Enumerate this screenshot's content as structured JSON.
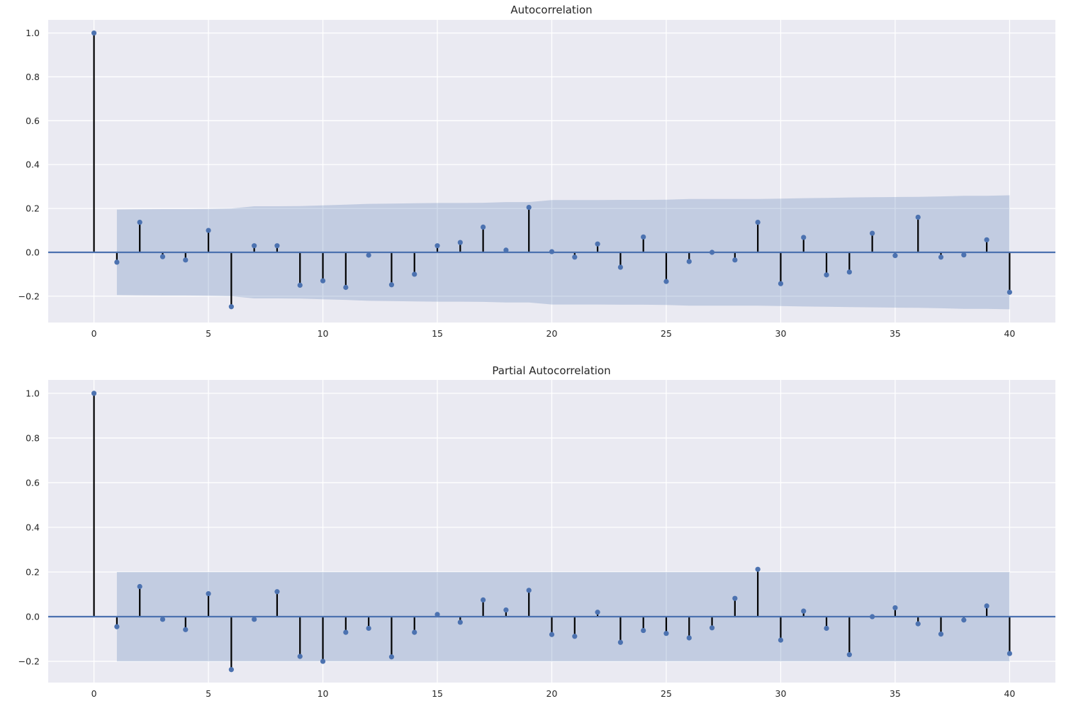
{
  "chart_data": [
    {
      "type": "stem",
      "title": "Autocorrelation",
      "xlabel": "",
      "ylabel": "",
      "xlim": [
        -2,
        42
      ],
      "ylim": [
        -0.32,
        1.06
      ],
      "xticks": [
        0,
        5,
        10,
        15,
        20,
        25,
        30,
        35,
        40
      ],
      "xtick_labels": [
        "0",
        "5",
        "10",
        "15",
        "20",
        "25",
        "30",
        "35",
        "40"
      ],
      "yticks": [
        -0.2,
        0.0,
        0.2,
        0.4,
        0.6,
        0.8,
        1.0
      ],
      "ytick_labels": [
        "−0.2",
        "0.0",
        "0.2",
        "0.4",
        "0.6",
        "0.8",
        "1.0"
      ],
      "grid": true,
      "lags": [
        0,
        1,
        2,
        3,
        4,
        5,
        6,
        7,
        8,
        9,
        10,
        11,
        12,
        13,
        14,
        15,
        16,
        17,
        18,
        19,
        20,
        21,
        22,
        23,
        24,
        25,
        26,
        27,
        28,
        29,
        30,
        31,
        32,
        33,
        34,
        35,
        36,
        37,
        38,
        39,
        40
      ],
      "values": [
        1.0,
        -0.045,
        0.137,
        -0.02,
        -0.035,
        0.1,
        -0.248,
        0.03,
        0.03,
        -0.15,
        -0.13,
        -0.16,
        -0.013,
        -0.148,
        -0.1,
        0.03,
        0.045,
        0.115,
        0.01,
        0.205,
        0.003,
        -0.022,
        0.038,
        -0.068,
        0.07,
        -0.133,
        -0.042,
        0.0,
        -0.035,
        0.137,
        -0.143,
        0.068,
        -0.103,
        -0.09,
        0.087,
        -0.015,
        0.16,
        -0.022,
        -0.012,
        0.057,
        -0.182
      ],
      "confint_upper": [
        null,
        0.195,
        0.196,
        0.197,
        0.197,
        0.198,
        0.2,
        0.21,
        0.21,
        0.211,
        0.214,
        0.217,
        0.221,
        0.222,
        0.224,
        0.225,
        0.225,
        0.226,
        0.229,
        0.229,
        0.238,
        0.238,
        0.238,
        0.239,
        0.239,
        0.24,
        0.243,
        0.243,
        0.243,
        0.243,
        0.245,
        0.247,
        0.248,
        0.25,
        0.251,
        0.252,
        0.253,
        0.255,
        0.258,
        0.258,
        0.26
      ],
      "accent": "#4c72b0",
      "band_color": "#4c72b0",
      "stem_color": "#000000",
      "background": "#eaeaf2"
    },
    {
      "type": "stem",
      "title": "Partial Autocorrelation",
      "xlabel": "",
      "ylabel": "",
      "xlim": [
        -2,
        42
      ],
      "ylim": [
        -0.295,
        1.06
      ],
      "xticks": [
        0,
        5,
        10,
        15,
        20,
        25,
        30,
        35,
        40
      ],
      "xtick_labels": [
        "0",
        "5",
        "10",
        "15",
        "20",
        "25",
        "30",
        "35",
        "40"
      ],
      "yticks": [
        -0.2,
        0.0,
        0.2,
        0.4,
        0.6,
        0.8,
        1.0
      ],
      "ytick_labels": [
        "−0.2",
        "0.0",
        "0.2",
        "0.4",
        "0.6",
        "0.8",
        "1.0"
      ],
      "grid": true,
      "lags": [
        0,
        1,
        2,
        3,
        4,
        5,
        6,
        7,
        8,
        9,
        10,
        11,
        12,
        13,
        14,
        15,
        16,
        17,
        18,
        19,
        20,
        21,
        22,
        23,
        24,
        25,
        26,
        27,
        28,
        29,
        30,
        31,
        32,
        33,
        34,
        35,
        36,
        37,
        38,
        39,
        40
      ],
      "values": [
        1.0,
        -0.045,
        0.135,
        -0.012,
        -0.058,
        0.103,
        -0.237,
        -0.012,
        0.112,
        -0.178,
        -0.2,
        -0.07,
        -0.052,
        -0.18,
        -0.07,
        0.01,
        -0.025,
        0.075,
        0.03,
        0.118,
        -0.08,
        -0.088,
        0.02,
        -0.115,
        -0.062,
        -0.075,
        -0.095,
        -0.05,
        0.082,
        0.212,
        -0.105,
        0.025,
        -0.052,
        -0.17,
        0.0,
        0.04,
        -0.032,
        -0.078,
        -0.015,
        0.048,
        -0.165
      ],
      "confint_upper": [
        null,
        0.2,
        0.2,
        0.2,
        0.2,
        0.2,
        0.2,
        0.2,
        0.2,
        0.2,
        0.2,
        0.2,
        0.2,
        0.2,
        0.2,
        0.2,
        0.2,
        0.2,
        0.2,
        0.2,
        0.2,
        0.2,
        0.2,
        0.2,
        0.2,
        0.2,
        0.2,
        0.2,
        0.2,
        0.2,
        0.2,
        0.2,
        0.2,
        0.2,
        0.2,
        0.2,
        0.2,
        0.2,
        0.2,
        0.2,
        0.2
      ],
      "accent": "#4c72b0",
      "band_color": "#4c72b0",
      "stem_color": "#000000",
      "background": "#eaeaf2"
    }
  ]
}
